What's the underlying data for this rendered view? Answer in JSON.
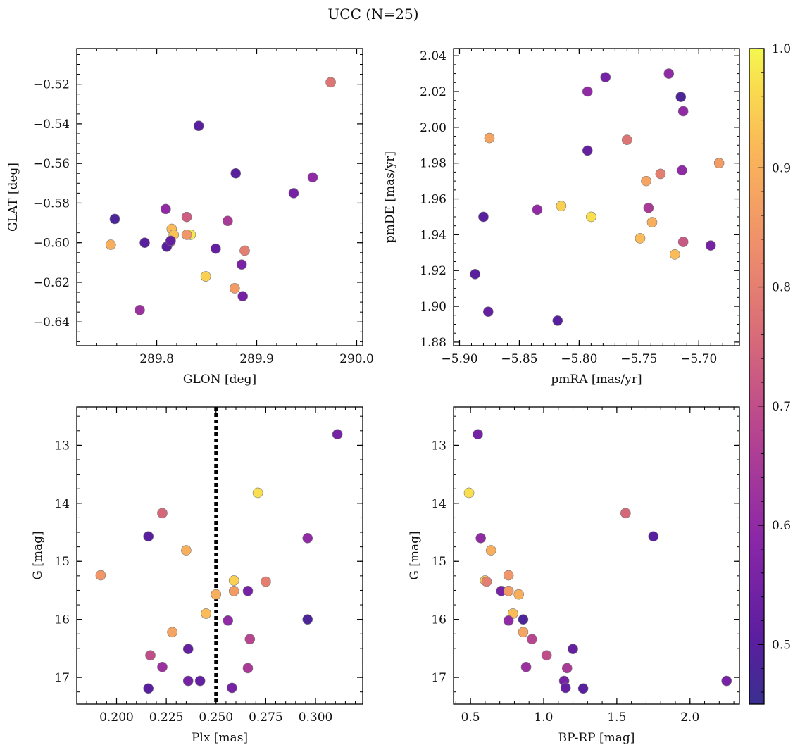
{
  "suptitle": "UCC (N=25)",
  "colorbar": {
    "range": [
      0.45,
      1.0
    ],
    "ticks": [
      0.5,
      0.6,
      0.7,
      0.8,
      0.9,
      1.0
    ],
    "tick_labels": [
      "0.5",
      "0.6",
      "0.7",
      "0.8",
      "0.9",
      "1.0"
    ],
    "colormap": "plasma"
  },
  "chart_data": [
    {
      "type": "scatter",
      "name": "glon-glat",
      "xlabel": "GLON [deg]",
      "ylabel": "GLAT [deg]",
      "xlim": [
        289.72,
        290.006
      ],
      "ylim": [
        -0.652,
        -0.502
      ],
      "xticks": [
        289.8,
        289.9,
        290.0
      ],
      "xtick_labels": [
        "289.8",
        "289.9",
        "290.0"
      ],
      "yticks": [
        -0.64,
        -0.62,
        -0.6,
        -0.58,
        -0.56,
        -0.54,
        -0.52
      ],
      "ytick_labels": [
        "−0.64",
        "−0.62",
        "−0.60",
        "−0.58",
        "−0.56",
        "−0.54",
        "−0.52"
      ],
      "x": [
        289.974,
        289.842,
        289.879,
        289.956,
        289.937,
        289.758,
        289.809,
        289.83,
        289.871,
        289.815,
        289.817,
        289.834,
        289.83,
        289.788,
        289.754,
        289.813,
        289.81,
        289.859,
        289.888,
        289.885,
        289.849,
        289.878,
        289.886,
        289.783,
        289.814
      ],
      "y": [
        -0.519,
        -0.541,
        -0.565,
        -0.567,
        -0.575,
        -0.588,
        -0.583,
        -0.587,
        -0.589,
        -0.593,
        -0.596,
        -0.596,
        -0.596,
        -0.6,
        -0.601,
        -0.6,
        -0.602,
        -0.603,
        -0.604,
        -0.611,
        -0.617,
        -0.623,
        -0.627,
        -0.634,
        -0.599
      ],
      "color_values": [
        0.78,
        0.5,
        0.5,
        0.6,
        0.55,
        0.48,
        0.6,
        0.73,
        0.65,
        0.92,
        0.93,
        0.98,
        0.85,
        0.5,
        0.9,
        0.85,
        0.5,
        0.52,
        0.8,
        0.56,
        0.95,
        0.86,
        0.55,
        0.62,
        0.52
      ]
    },
    {
      "type": "scatter",
      "name": "pmra-pmde",
      "xlabel": "pmRA [mas/yr]",
      "ylabel": "pmDE [mas/yr]",
      "xlim": [
        -5.905,
        -5.666
      ],
      "ylim": [
        1.878,
        2.044
      ],
      "xticks": [
        -5.9,
        -5.85,
        -5.8,
        -5.75,
        -5.7
      ],
      "xtick_labels": [
        "−5.90",
        "−5.85",
        "−5.80",
        "−5.75",
        "−5.70"
      ],
      "yticks": [
        1.88,
        1.9,
        1.92,
        1.94,
        1.96,
        1.98,
        2.0,
        2.02,
        2.04
      ],
      "ytick_labels": [
        "1.88",
        "1.90",
        "1.92",
        "1.94",
        "1.96",
        "1.98",
        "2.00",
        "2.02",
        "2.04"
      ],
      "x": [
        -5.725,
        -5.778,
        -5.793,
        -5.715,
        -5.713,
        -5.875,
        -5.76,
        -5.793,
        -5.683,
        -5.714,
        -5.732,
        -5.744,
        -5.815,
        -5.835,
        -5.742,
        -5.79,
        -5.88,
        -5.739,
        -5.749,
        -5.713,
        -5.69,
        -5.72,
        -5.887,
        -5.876,
        -5.818
      ],
      "y": [
        2.03,
        2.028,
        2.02,
        2.017,
        2.009,
        1.994,
        1.993,
        1.987,
        1.98,
        1.976,
        1.974,
        1.97,
        1.956,
        1.954,
        1.955,
        1.95,
        1.95,
        1.947,
        1.938,
        1.936,
        1.934,
        1.929,
        1.918,
        1.897,
        1.892
      ],
      "color_values": [
        0.6,
        0.55,
        0.6,
        0.48,
        0.6,
        0.88,
        0.78,
        0.52,
        0.86,
        0.6,
        0.8,
        0.88,
        0.95,
        0.6,
        0.65,
        0.97,
        0.5,
        0.9,
        0.92,
        0.72,
        0.55,
        0.92,
        0.5,
        0.52,
        0.5
      ]
    },
    {
      "type": "scatter",
      "name": "plx-g",
      "xlabel": "Plx [mas]",
      "ylabel": "G [mag]",
      "xlim": [
        0.18,
        0.3237
      ],
      "ylim": [
        17.46,
        12.34
      ],
      "y_inverted": true,
      "vline": {
        "x": 0.25,
        "style": "dotted",
        "color": "#000000"
      },
      "xticks": [
        0.2,
        0.225,
        0.25,
        0.275,
        0.3
      ],
      "xtick_labels": [
        "0.200",
        "0.225",
        "0.250",
        "0.275",
        "0.300"
      ],
      "yticks": [
        13,
        14,
        15,
        16,
        17
      ],
      "ytick_labels": [
        "13",
        "14",
        "15",
        "16",
        "17"
      ],
      "x": [
        0.311,
        0.271,
        0.223,
        0.216,
        0.296,
        0.235,
        0.192,
        0.259,
        0.275,
        0.259,
        0.266,
        0.25,
        0.245,
        0.256,
        0.296,
        0.228,
        0.267,
        0.236,
        0.217,
        0.223,
        0.266,
        0.236,
        0.242,
        0.216,
        0.258
      ],
      "y": [
        12.81,
        13.82,
        14.17,
        14.57,
        14.6,
        14.81,
        15.24,
        15.33,
        15.35,
        15.51,
        15.51,
        15.57,
        15.9,
        16.02,
        16.0,
        16.22,
        16.34,
        16.51,
        16.62,
        16.82,
        16.84,
        17.06,
        17.06,
        17.19,
        17.18
      ],
      "color_values": [
        0.55,
        0.97,
        0.75,
        0.5,
        0.6,
        0.9,
        0.85,
        0.95,
        0.8,
        0.86,
        0.55,
        0.9,
        0.92,
        0.6,
        0.48,
        0.88,
        0.68,
        0.52,
        0.7,
        0.62,
        0.65,
        0.55,
        0.52,
        0.5,
        0.55
      ]
    },
    {
      "type": "scatter",
      "name": "bprp-g",
      "xlabel": "BP-RP [mag]",
      "ylabel": "G [mag]",
      "xlim": [
        0.384,
        2.338
      ],
      "ylim": [
        17.46,
        12.34
      ],
      "y_inverted": true,
      "xticks": [
        0.5,
        1.0,
        1.5,
        2.0
      ],
      "xtick_labels": [
        "0.5",
        "1.0",
        "1.5",
        "2.0"
      ],
      "yticks": [
        13,
        14,
        15,
        16,
        17
      ],
      "ytick_labels": [
        "13",
        "14",
        "15",
        "16",
        "17"
      ],
      "x": [
        0.55,
        0.49,
        1.56,
        0.57,
        1.75,
        0.64,
        0.76,
        0.6,
        0.61,
        0.71,
        0.76,
        0.83,
        0.79,
        0.86,
        0.76,
        0.86,
        0.92,
        1.02,
        1.2,
        0.88,
        1.16,
        1.14,
        2.25,
        1.15,
        1.27
      ],
      "y": [
        12.81,
        13.82,
        14.17,
        14.6,
        14.57,
        14.81,
        15.24,
        15.33,
        15.35,
        15.51,
        15.51,
        15.57,
        15.9,
        16.0,
        16.02,
        16.22,
        16.34,
        16.62,
        16.51,
        16.82,
        16.84,
        17.06,
        17.06,
        17.18,
        17.19
      ],
      "color_values": [
        0.55,
        0.97,
        0.75,
        0.6,
        0.5,
        0.9,
        0.85,
        0.95,
        0.8,
        0.55,
        0.86,
        0.9,
        0.92,
        0.48,
        0.6,
        0.88,
        0.68,
        0.7,
        0.52,
        0.62,
        0.65,
        0.55,
        0.55,
        0.52,
        0.5
      ]
    }
  ]
}
